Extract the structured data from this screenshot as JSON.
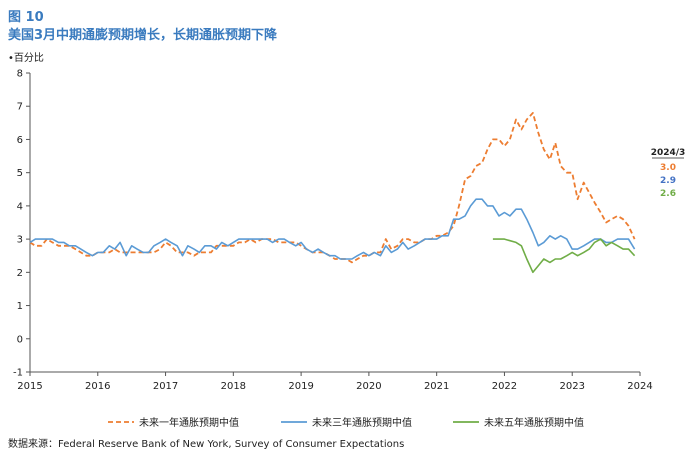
{
  "figure": {
    "label": "图 10",
    "title": "美国3月中期通膨预期增长，长期通胀预期下降",
    "unit": "•百分比",
    "source": "数据来源：Federal Reserve Bank of New York, Survey of Consumer Expectations"
  },
  "chart_data": {
    "type": "line",
    "title": "美国3月中期通膨预期增长，长期通胀预期下降",
    "ylabel": "•百分比",
    "xlabel": "",
    "xlim": [
      2015,
      2024
    ],
    "ylim": [
      -1,
      8
    ],
    "x_ticks": [
      "2015",
      "2016",
      "2017",
      "2018",
      "2019",
      "2020",
      "2021",
      "2022",
      "2023",
      "2024"
    ],
    "y_ticks": [
      "-1",
      "0",
      "1",
      "2",
      "3",
      "4",
      "5",
      "6",
      "7",
      "8"
    ],
    "grid": false,
    "legend_position": "bottom",
    "series": [
      {
        "name": "未来一年通胀预期中值",
        "color": "#ed7d31",
        "style": "dashed",
        "points": [
          [
            2015.0,
            2.9
          ],
          [
            2015.08,
            2.8
          ],
          [
            2015.17,
            2.8
          ],
          [
            2015.25,
            3.0
          ],
          [
            2015.33,
            2.9
          ],
          [
            2015.42,
            2.8
          ],
          [
            2015.5,
            2.8
          ],
          [
            2015.58,
            2.8
          ],
          [
            2015.67,
            2.7
          ],
          [
            2015.75,
            2.6
          ],
          [
            2015.83,
            2.5
          ],
          [
            2015.92,
            2.5
          ],
          [
            2016.0,
            2.6
          ],
          [
            2016.08,
            2.6
          ],
          [
            2016.17,
            2.6
          ],
          [
            2016.25,
            2.7
          ],
          [
            2016.33,
            2.6
          ],
          [
            2016.42,
            2.6
          ],
          [
            2016.5,
            2.6
          ],
          [
            2016.58,
            2.6
          ],
          [
            2016.67,
            2.6
          ],
          [
            2016.75,
            2.6
          ],
          [
            2016.83,
            2.6
          ],
          [
            2016.92,
            2.7
          ],
          [
            2017.0,
            2.9
          ],
          [
            2017.08,
            2.8
          ],
          [
            2017.17,
            2.6
          ],
          [
            2017.25,
            2.6
          ],
          [
            2017.33,
            2.6
          ],
          [
            2017.42,
            2.5
          ],
          [
            2017.5,
            2.6
          ],
          [
            2017.58,
            2.6
          ],
          [
            2017.67,
            2.6
          ],
          [
            2017.75,
            2.8
          ],
          [
            2017.83,
            2.8
          ],
          [
            2017.92,
            2.8
          ],
          [
            2018.0,
            2.8
          ],
          [
            2018.08,
            2.9
          ],
          [
            2018.17,
            2.9
          ],
          [
            2018.25,
            3.0
          ],
          [
            2018.33,
            2.9
          ],
          [
            2018.42,
            3.0
          ],
          [
            2018.5,
            3.0
          ],
          [
            2018.58,
            3.0
          ],
          [
            2018.67,
            2.9
          ],
          [
            2018.75,
            2.9
          ],
          [
            2018.83,
            2.9
          ],
          [
            2018.92,
            2.9
          ],
          [
            2019.0,
            2.8
          ],
          [
            2019.08,
            2.7
          ],
          [
            2019.17,
            2.6
          ],
          [
            2019.25,
            2.6
          ],
          [
            2019.33,
            2.6
          ],
          [
            2019.42,
            2.5
          ],
          [
            2019.5,
            2.4
          ],
          [
            2019.58,
            2.4
          ],
          [
            2019.67,
            2.4
          ],
          [
            2019.75,
            2.3
          ],
          [
            2019.83,
            2.4
          ],
          [
            2019.92,
            2.5
          ],
          [
            2020.0,
            2.5
          ],
          [
            2020.08,
            2.6
          ],
          [
            2020.17,
            2.6
          ],
          [
            2020.25,
            3.0
          ],
          [
            2020.33,
            2.7
          ],
          [
            2020.42,
            2.8
          ],
          [
            2020.5,
            3.0
          ],
          [
            2020.58,
            3.0
          ],
          [
            2020.67,
            2.9
          ],
          [
            2020.75,
            2.9
          ],
          [
            2020.83,
            3.0
          ],
          [
            2020.92,
            3.0
          ],
          [
            2021.0,
            3.1
          ],
          [
            2021.08,
            3.1
          ],
          [
            2021.17,
            3.2
          ],
          [
            2021.25,
            3.4
          ],
          [
            2021.33,
            4.0
          ],
          [
            2021.42,
            4.8
          ],
          [
            2021.5,
            4.9
          ],
          [
            2021.58,
            5.2
          ],
          [
            2021.67,
            5.3
          ],
          [
            2021.75,
            5.7
          ],
          [
            2021.83,
            6.0
          ],
          [
            2021.92,
            6.0
          ],
          [
            2022.0,
            5.8
          ],
          [
            2022.08,
            6.0
          ],
          [
            2022.17,
            6.6
          ],
          [
            2022.25,
            6.3
          ],
          [
            2022.33,
            6.6
          ],
          [
            2022.42,
            6.8
          ],
          [
            2022.5,
            6.2
          ],
          [
            2022.58,
            5.7
          ],
          [
            2022.67,
            5.4
          ],
          [
            2022.75,
            5.9
          ],
          [
            2022.83,
            5.2
          ],
          [
            2022.92,
            5.0
          ],
          [
            2023.0,
            5.0
          ],
          [
            2023.08,
            4.2
          ],
          [
            2023.17,
            4.7
          ],
          [
            2023.25,
            4.4
          ],
          [
            2023.33,
            4.1
          ],
          [
            2023.42,
            3.8
          ],
          [
            2023.5,
            3.5
          ],
          [
            2023.58,
            3.6
          ],
          [
            2023.67,
            3.7
          ],
          [
            2023.75,
            3.6
          ],
          [
            2023.83,
            3.4
          ],
          [
            2023.92,
            3.0
          ]
        ]
      },
      {
        "name": "未来三年通胀预期中值",
        "color": "#5b9bd5",
        "style": "solid",
        "points": [
          [
            2015.0,
            2.9
          ],
          [
            2015.08,
            3.0
          ],
          [
            2015.17,
            3.0
          ],
          [
            2015.25,
            3.0
          ],
          [
            2015.33,
            3.0
          ],
          [
            2015.42,
            2.9
          ],
          [
            2015.5,
            2.9
          ],
          [
            2015.58,
            2.8
          ],
          [
            2015.67,
            2.8
          ],
          [
            2015.75,
            2.7
          ],
          [
            2015.83,
            2.6
          ],
          [
            2015.92,
            2.5
          ],
          [
            2016.0,
            2.6
          ],
          [
            2016.08,
            2.6
          ],
          [
            2016.17,
            2.8
          ],
          [
            2016.25,
            2.7
          ],
          [
            2016.33,
            2.9
          ],
          [
            2016.42,
            2.5
          ],
          [
            2016.5,
            2.8
          ],
          [
            2016.58,
            2.7
          ],
          [
            2016.67,
            2.6
          ],
          [
            2016.75,
            2.6
          ],
          [
            2016.83,
            2.8
          ],
          [
            2016.92,
            2.9
          ],
          [
            2017.0,
            3.0
          ],
          [
            2017.08,
            2.9
          ],
          [
            2017.17,
            2.8
          ],
          [
            2017.25,
            2.5
          ],
          [
            2017.33,
            2.8
          ],
          [
            2017.42,
            2.7
          ],
          [
            2017.5,
            2.6
          ],
          [
            2017.58,
            2.8
          ],
          [
            2017.67,
            2.8
          ],
          [
            2017.75,
            2.7
          ],
          [
            2017.83,
            2.9
          ],
          [
            2017.92,
            2.8
          ],
          [
            2018.0,
            2.9
          ],
          [
            2018.08,
            3.0
          ],
          [
            2018.17,
            3.0
          ],
          [
            2018.25,
            3.0
          ],
          [
            2018.33,
            3.0
          ],
          [
            2018.42,
            3.0
          ],
          [
            2018.5,
            3.0
          ],
          [
            2018.58,
            2.9
          ],
          [
            2018.67,
            3.0
          ],
          [
            2018.75,
            3.0
          ],
          [
            2018.83,
            2.9
          ],
          [
            2018.92,
            2.8
          ],
          [
            2019.0,
            2.9
          ],
          [
            2019.08,
            2.7
          ],
          [
            2019.17,
            2.6
          ],
          [
            2019.25,
            2.7
          ],
          [
            2019.33,
            2.6
          ],
          [
            2019.42,
            2.5
          ],
          [
            2019.5,
            2.5
          ],
          [
            2019.58,
            2.4
          ],
          [
            2019.67,
            2.4
          ],
          [
            2019.75,
            2.4
          ],
          [
            2019.83,
            2.5
          ],
          [
            2019.92,
            2.6
          ],
          [
            2020.0,
            2.5
          ],
          [
            2020.08,
            2.6
          ],
          [
            2020.17,
            2.5
          ],
          [
            2020.25,
            2.8
          ],
          [
            2020.33,
            2.6
          ],
          [
            2020.42,
            2.7
          ],
          [
            2020.5,
            2.9
          ],
          [
            2020.58,
            2.7
          ],
          [
            2020.67,
            2.8
          ],
          [
            2020.75,
            2.9
          ],
          [
            2020.83,
            3.0
          ],
          [
            2020.92,
            3.0
          ],
          [
            2021.0,
            3.0
          ],
          [
            2021.08,
            3.1
          ],
          [
            2021.17,
            3.1
          ],
          [
            2021.25,
            3.6
          ],
          [
            2021.33,
            3.6
          ],
          [
            2021.42,
            3.7
          ],
          [
            2021.5,
            4.0
          ],
          [
            2021.58,
            4.2
          ],
          [
            2021.67,
            4.2
          ],
          [
            2021.75,
            4.0
          ],
          [
            2021.83,
            4.0
          ],
          [
            2021.92,
            3.7
          ],
          [
            2022.0,
            3.8
          ],
          [
            2022.08,
            3.7
          ],
          [
            2022.17,
            3.9
          ],
          [
            2022.25,
            3.9
          ],
          [
            2022.33,
            3.6
          ],
          [
            2022.42,
            3.2
          ],
          [
            2022.5,
            2.8
          ],
          [
            2022.58,
            2.9
          ],
          [
            2022.67,
            3.1
          ],
          [
            2022.75,
            3.0
          ],
          [
            2022.83,
            3.1
          ],
          [
            2022.92,
            3.0
          ],
          [
            2023.0,
            2.7
          ],
          [
            2023.08,
            2.7
          ],
          [
            2023.17,
            2.8
          ],
          [
            2023.25,
            2.9
          ],
          [
            2023.33,
            3.0
          ],
          [
            2023.42,
            3.0
          ],
          [
            2023.5,
            2.9
          ],
          [
            2023.58,
            2.9
          ],
          [
            2023.67,
            3.0
          ],
          [
            2023.75,
            3.0
          ],
          [
            2023.83,
            3.0
          ],
          [
            2023.92,
            2.7
          ]
        ]
      },
      {
        "name": "未来五年通胀预期中值",
        "color": "#70ad47",
        "style": "solid",
        "points": [
          [
            2021.83,
            3.0
          ],
          [
            2022.0,
            3.0
          ],
          [
            2022.17,
            2.9
          ],
          [
            2022.25,
            2.8
          ],
          [
            2022.33,
            2.4
          ],
          [
            2022.42,
            2.0
          ],
          [
            2022.5,
            2.2
          ],
          [
            2022.58,
            2.4
          ],
          [
            2022.67,
            2.3
          ],
          [
            2022.75,
            2.4
          ],
          [
            2022.83,
            2.4
          ],
          [
            2022.92,
            2.5
          ],
          [
            2023.0,
            2.6
          ],
          [
            2023.08,
            2.5
          ],
          [
            2023.17,
            2.6
          ],
          [
            2023.25,
            2.7
          ],
          [
            2023.33,
            2.9
          ],
          [
            2023.42,
            3.0
          ],
          [
            2023.5,
            2.8
          ],
          [
            2023.58,
            2.9
          ],
          [
            2023.67,
            2.8
          ],
          [
            2023.75,
            2.7
          ],
          [
            2023.83,
            2.7
          ],
          [
            2023.92,
            2.5
          ]
        ]
      }
    ],
    "annotation": {
      "heading": "2024/3",
      "values": [
        {
          "text": "3.0",
          "color": "#ed7d31"
        },
        {
          "text": "2.9",
          "color": "#4472c4"
        },
        {
          "text": "2.6",
          "color": "#70ad47"
        }
      ]
    }
  }
}
